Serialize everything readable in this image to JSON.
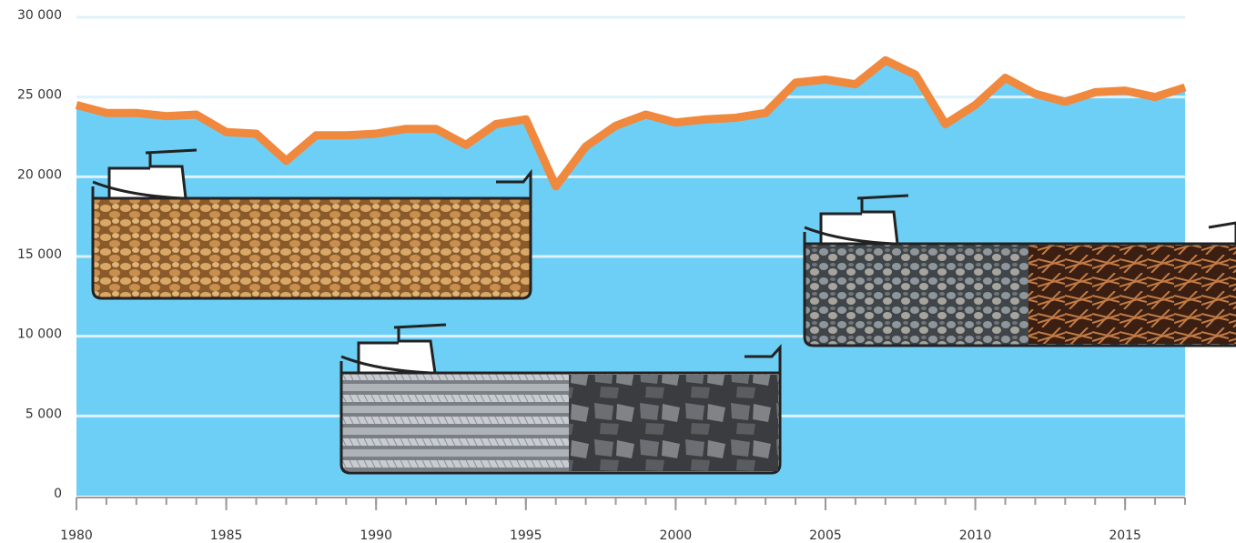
{
  "chart_data": {
    "type": "area",
    "x": [
      1980,
      1981,
      1982,
      1983,
      1984,
      1985,
      1986,
      1987,
      1988,
      1989,
      1990,
      1991,
      1992,
      1993,
      1994,
      1995,
      1996,
      1997,
      1998,
      1999,
      2000,
      2001,
      2002,
      2003,
      2004,
      2005,
      2006,
      2007,
      2008,
      2009,
      2010,
      2011,
      2012,
      2013,
      2014,
      2015,
      2016,
      2017
    ],
    "values": [
      24500,
      24000,
      24000,
      23800,
      23900,
      22800,
      22700,
      21000,
      22600,
      22600,
      22700,
      23000,
      23000,
      22000,
      23300,
      23600,
      19400,
      21900,
      23200,
      23900,
      23400,
      23600,
      23700,
      24000,
      25900,
      26100,
      25800,
      27300,
      26400,
      23300,
      24500,
      26200,
      25200,
      24700,
      25300,
      25400,
      25000,
      25600
    ],
    "fill_color": "#6dcff6",
    "line_color": "#f0883e",
    "xlim": [
      1980,
      2017
    ],
    "xticks": [
      1980,
      1985,
      1990,
      1995,
      2000,
      2005,
      2010,
      2015
    ],
    "ylim": [
      0,
      30000
    ],
    "yticks": [
      {
        "value": 0,
        "label": "0"
      },
      {
        "value": 5000,
        "label": "5 000"
      },
      {
        "value": 10000,
        "label": "10 000"
      },
      {
        "value": 15000,
        "label": "15 000"
      },
      {
        "value": 20000,
        "label": "20 000"
      },
      {
        "value": 25000,
        "label": "25 000"
      },
      {
        "value": 30000,
        "label": "30 000"
      }
    ],
    "grid": true
  }
}
